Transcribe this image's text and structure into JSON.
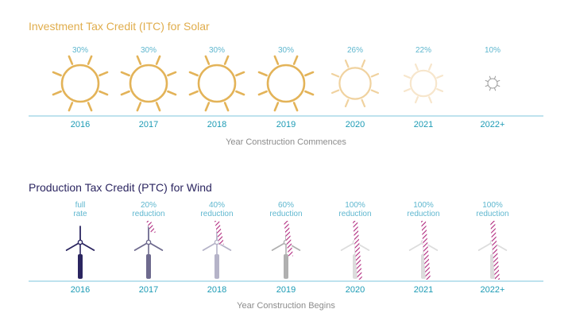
{
  "colors": {
    "solar_title": "#e0ad4c",
    "wind_title": "#2b2560",
    "axis_line": "#7cc4dc",
    "year_text": "#1c9bb5",
    "pct_text": "#5fb7cf",
    "hatch": "#b0287e",
    "sun": [
      "#e3b358",
      "#e3b358",
      "#e3b358",
      "#e3b358",
      "#f0d29f",
      "#f7e6cc",
      "#9a9a9a"
    ],
    "turbine": [
      "#2b2560",
      "#6e6a8e",
      "#b5b3c8",
      "#b0b0b0",
      "#dcdcdc",
      "#dcdcdc",
      "#dcdcdc"
    ]
  },
  "chart_data": [
    {
      "type": "bar",
      "title": "Investment Tax Credit (ITC) for Solar",
      "xlabel": "Year Construction Commences",
      "categories": [
        "2016",
        "2017",
        "2018",
        "2019",
        "2020",
        "2021",
        "2022+"
      ],
      "values": [
        30,
        30,
        30,
        30,
        26,
        22,
        10
      ],
      "labels": [
        "30%",
        "30%",
        "30%",
        "30%",
        "26%",
        "22%",
        "10%"
      ]
    },
    {
      "type": "bar",
      "title": "Production Tax Credit (PTC) for Wind",
      "xlabel": "Year Construction Begins",
      "categories": [
        "2016",
        "2017",
        "2018",
        "2019",
        "2020",
        "2021",
        "2022+"
      ],
      "reduction_pct": [
        0,
        20,
        40,
        60,
        100,
        100,
        100
      ],
      "labels": [
        [
          "full",
          "rate"
        ],
        [
          "20%",
          "reduction"
        ],
        [
          "40%",
          "reduction"
        ],
        [
          "60%",
          "reduction"
        ],
        [
          "100%",
          "reduction"
        ],
        [
          "100%",
          "reduction"
        ],
        [
          "100%",
          "reduction"
        ]
      ]
    }
  ]
}
